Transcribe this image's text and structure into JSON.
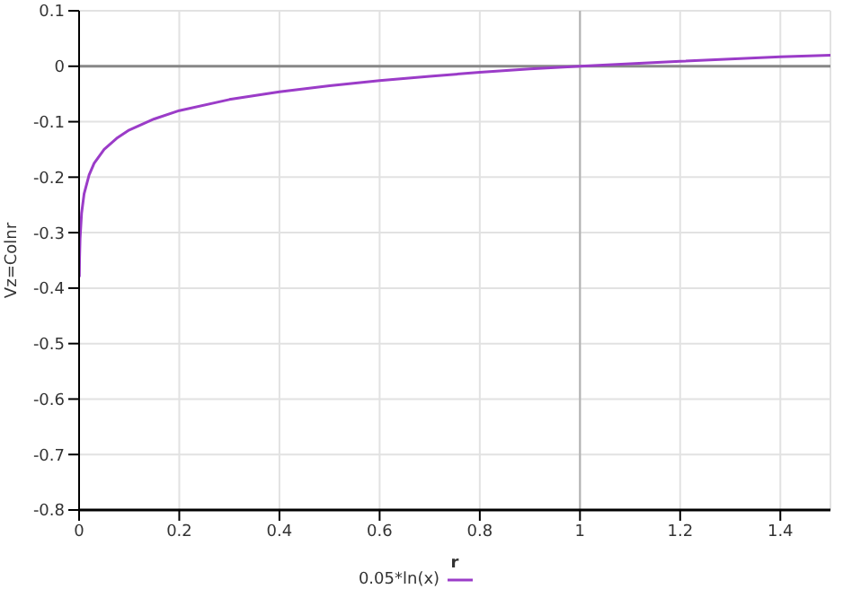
{
  "chart_data": {
    "type": "line",
    "xlabel": "r",
    "ylabel": "Vz=Colnr",
    "series": [
      {
        "name": "0.05*ln(x)",
        "color": "#9b3cc8",
        "x": [
          0.0005,
          0.001,
          0.002,
          0.005,
          0.01,
          0.02,
          0.03,
          0.05,
          0.075,
          0.1,
          0.15,
          0.2,
          0.3,
          0.4,
          0.5,
          0.6,
          0.7,
          0.8,
          0.9,
          1.0,
          1.2,
          1.4,
          1.5
        ],
        "values": [
          -0.38,
          -0.345,
          -0.31,
          -0.265,
          -0.23,
          -0.196,
          -0.175,
          -0.15,
          -0.13,
          -0.115,
          -0.095,
          -0.08,
          -0.06,
          -0.046,
          -0.035,
          -0.026,
          -0.018,
          -0.011,
          -0.005,
          0,
          0.009,
          0.017,
          0.02
        ]
      }
    ],
    "xlim": [
      0,
      1.5
    ],
    "xticks": [
      0,
      0.2,
      0.4,
      0.6,
      0.8,
      1,
      1.2,
      1.4
    ],
    "ylim": [
      -0.8,
      0.1
    ],
    "yticks": [
      -0.8,
      -0.7,
      -0.6,
      -0.5,
      -0.4,
      -0.3,
      -0.2,
      -0.1,
      0,
      0.1
    ],
    "grid": true,
    "legend": "bottom",
    "marker": "none",
    "line_style": "solid",
    "ref_lines": [
      {
        "axis": "y",
        "value": 0,
        "color": "#888888"
      },
      {
        "axis": "x",
        "value": 1,
        "color": "#b0b0b0"
      }
    ]
  }
}
